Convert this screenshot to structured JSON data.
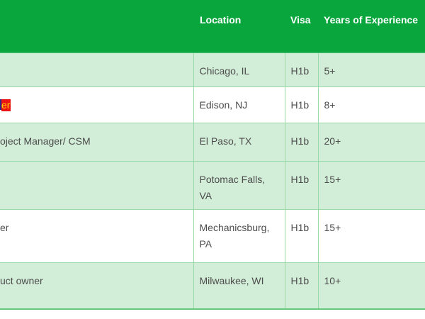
{
  "colors": {
    "header_bg": "#09a63e",
    "header_text": "#ffffff",
    "row_shade_bg": "#d3eed8",
    "row_plain_bg": "#ffffff",
    "grid_border": "#99d9a7",
    "header_border": "#2fb35b",
    "table_bottom_border": "#63ca7b",
    "body_text": "#4c4c4c",
    "highlight_bg": "#ec1313",
    "highlight_text": "#ffd700",
    "highlight_clipped_mark": "#2d2d86"
  },
  "table": {
    "headers": [
      {
        "key": "title",
        "label": ""
      },
      {
        "key": "location",
        "label": "Location"
      },
      {
        "key": "visa",
        "label": "Visa"
      },
      {
        "key": "experience",
        "label": "Years of Experience"
      }
    ],
    "rows": [
      {
        "title_fragment": "",
        "title_highlighted": false,
        "location": "Chicago, IL",
        "visa": "H1b",
        "experience": "5+",
        "shaded": true
      },
      {
        "title_fragment": "er",
        "title_highlighted": true,
        "location": "Edison, NJ",
        "visa": "H1b",
        "experience": "8+",
        "shaded": false
      },
      {
        "title_fragment": "oject Manager/ CSM",
        "title_highlighted": false,
        "location": "El Paso, TX",
        "visa": "H1b",
        "experience": "20+",
        "shaded": true
      },
      {
        "title_fragment": "",
        "title_highlighted": false,
        "location": "Potomac Falls, VA",
        "visa": "H1b",
        "experience": "15+",
        "shaded": true
      },
      {
        "title_fragment": "er",
        "title_highlighted": false,
        "location": "Mechanicsburg, PA",
        "visa": "H1b",
        "experience": "15+",
        "shaded": false
      },
      {
        "title_fragment": "uct owner",
        "title_highlighted": false,
        "location": "Milwaukee, WI",
        "visa": "H1b",
        "experience": "10+",
        "shaded": true
      }
    ]
  }
}
